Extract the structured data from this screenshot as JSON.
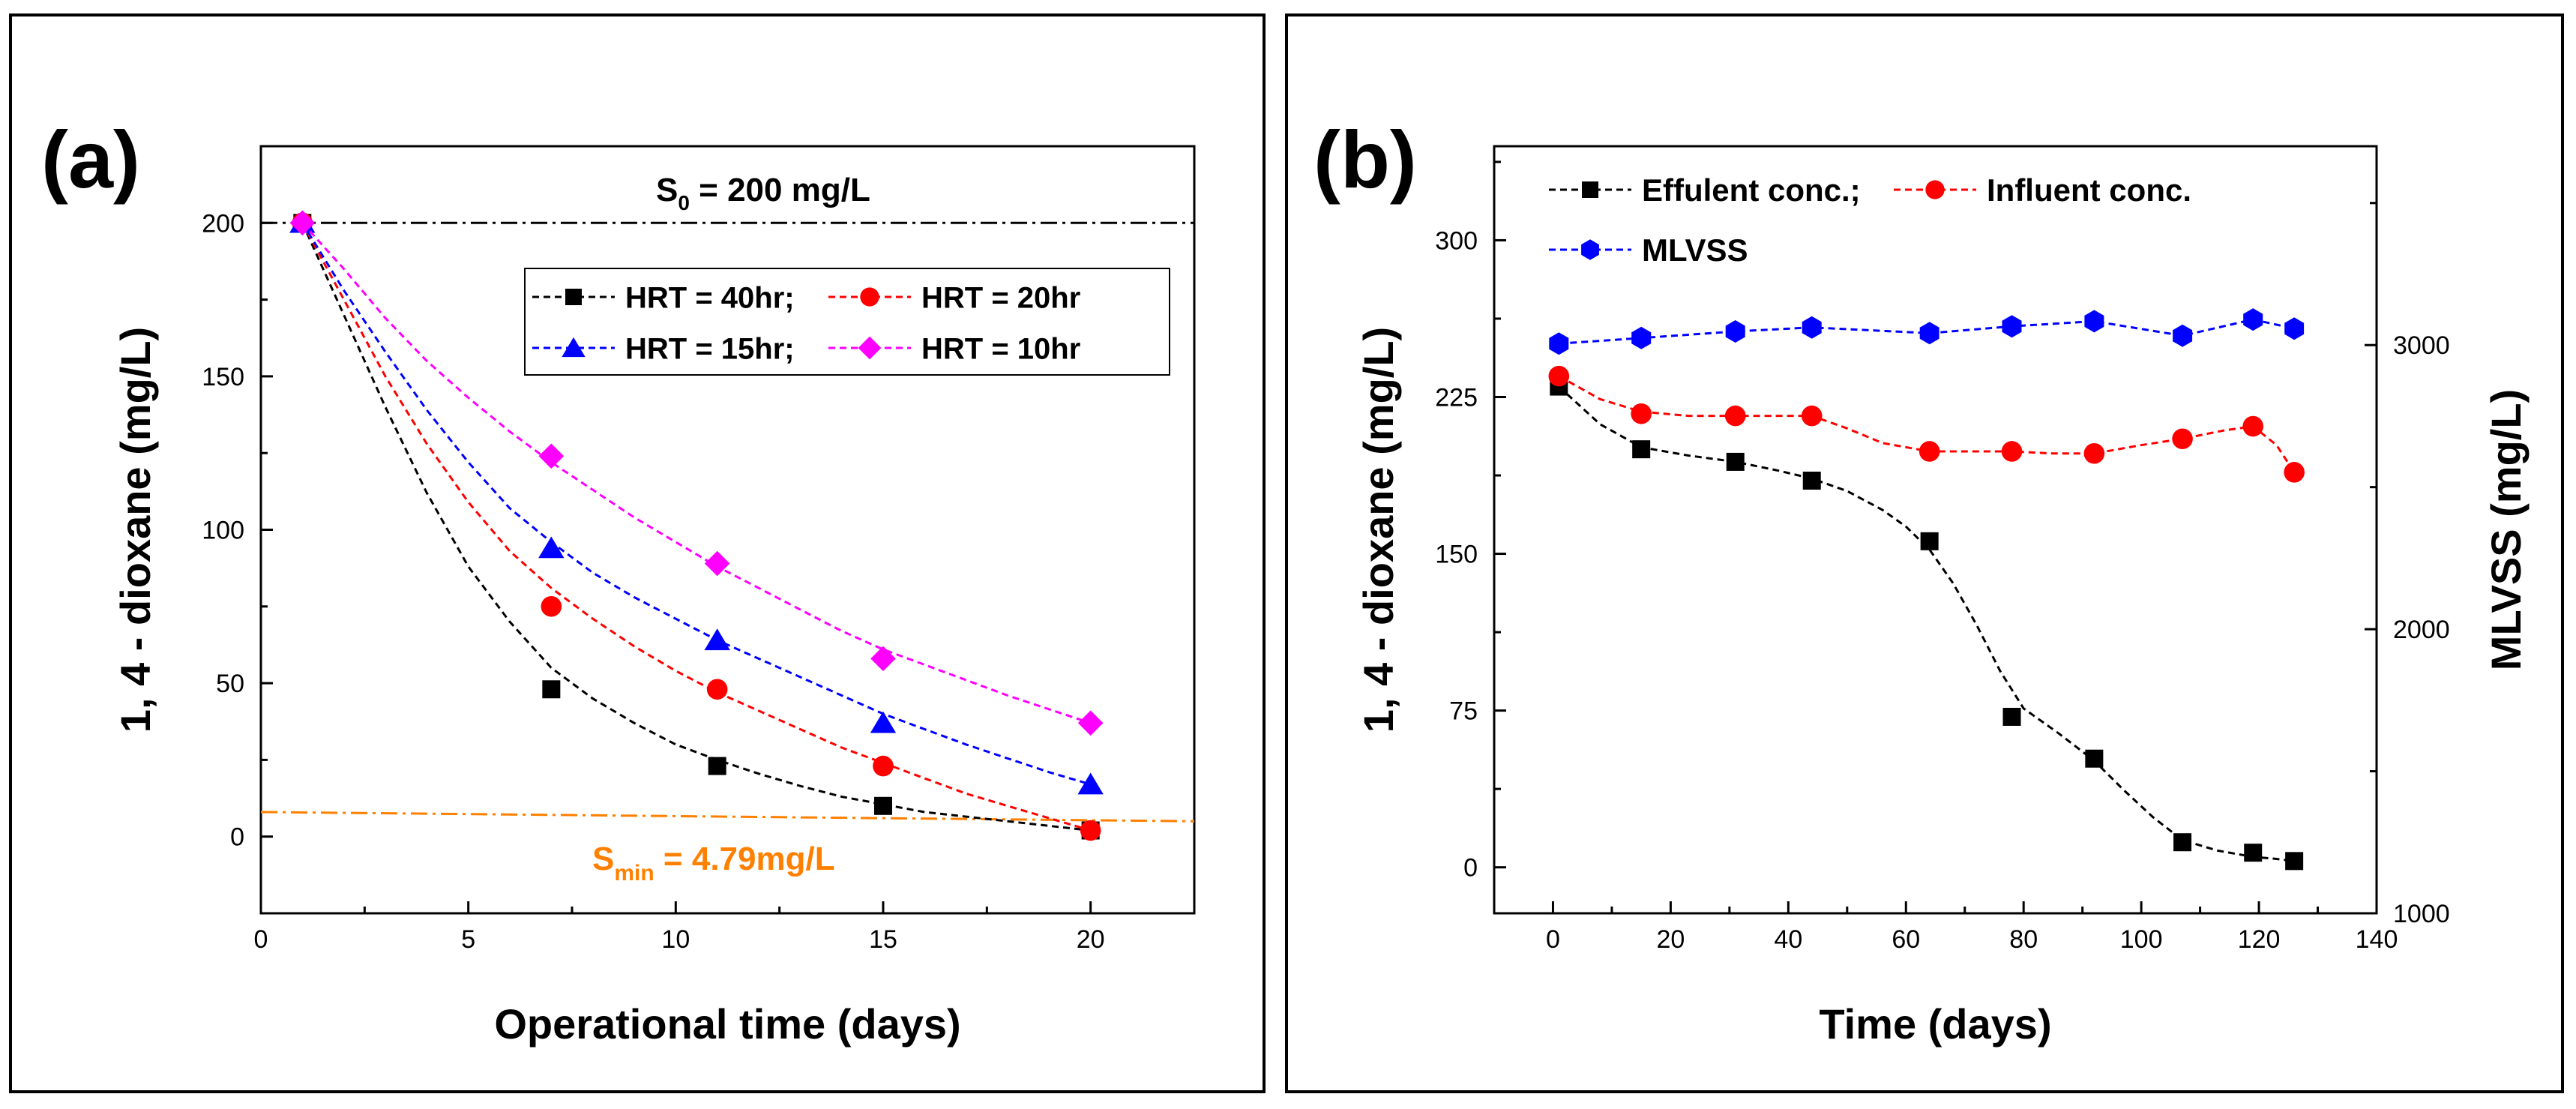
{
  "chart_data": [
    {
      "type": "line",
      "panel_label": "(a)",
      "xlabel": "Operational time (days)",
      "ylabel": "1, 4 - dioxane (mg/L)",
      "xlim": [
        0,
        22.5
      ],
      "ylim": [
        -25,
        225
      ],
      "xticks": [
        0,
        5,
        10,
        15,
        20
      ],
      "yticks": [
        0,
        50,
        100,
        150,
        200
      ],
      "reference_lines": [
        {
          "name": "S0",
          "main": "S",
          "sub": "0",
          "suffix": " = 200 mg/L",
          "y": 200,
          "color": "#000000"
        },
        {
          "name": "Smin",
          "main": "S",
          "sub": "min",
          "suffix": " = 4.79mg/L",
          "y_start": 8,
          "y_end": 5,
          "color": "#ff8000"
        }
      ],
      "series": [
        {
          "name": "HRT = 40hr;",
          "color": "#000000",
          "marker": "square",
          "x": [
            1,
            7,
            11,
            15,
            20
          ],
          "y": [
            200,
            48,
            23,
            10,
            2
          ],
          "curve": [
            [
              1,
              200
            ],
            [
              2,
              170
            ],
            [
              3,
              140
            ],
            [
              4,
              112
            ],
            [
              5,
              88
            ],
            [
              6,
              70
            ],
            [
              7,
              55
            ],
            [
              8,
              45
            ],
            [
              9,
              37
            ],
            [
              10,
              30
            ],
            [
              11,
              25
            ],
            [
              12,
              20.5
            ],
            [
              13,
              16.5
            ],
            [
              14,
              13
            ],
            [
              15,
              10.5
            ],
            [
              16,
              8
            ],
            [
              17,
              6.5
            ],
            [
              18,
              5
            ],
            [
              19,
              3.5
            ],
            [
              20,
              2
            ]
          ]
        },
        {
          "name": "HRT = 20hr",
          "color": "#ff0000",
          "marker": "circle",
          "x": [
            1,
            7,
            11,
            15,
            20
          ],
          "y": [
            200,
            75,
            48,
            23,
            2
          ],
          "curve": [
            [
              1,
              200
            ],
            [
              2,
              175
            ],
            [
              3,
              150
            ],
            [
              4,
              128
            ],
            [
              5,
              109
            ],
            [
              6,
              93
            ],
            [
              7,
              81
            ],
            [
              8,
              71
            ],
            [
              9,
              62
            ],
            [
              10,
              54
            ],
            [
              11,
              47
            ],
            [
              12,
              41
            ],
            [
              13,
              35
            ],
            [
              14,
              29
            ],
            [
              15,
              24
            ],
            [
              16,
              19
            ],
            [
              17,
              14
            ],
            [
              18,
              10
            ],
            [
              19,
              6
            ],
            [
              20,
              2
            ]
          ]
        },
        {
          "name": "HRT = 15hr;",
          "color": "#0000ff",
          "marker": "triangle",
          "x": [
            1,
            7,
            11,
            15,
            20
          ],
          "y": [
            200,
            94,
            64,
            37,
            17
          ],
          "curve": [
            [
              1,
              200
            ],
            [
              2,
              178
            ],
            [
              3,
              158
            ],
            [
              4,
              139
            ],
            [
              5,
              122
            ],
            [
              6,
              107
            ],
            [
              7,
              96
            ],
            [
              8,
              86
            ],
            [
              9,
              78
            ],
            [
              10,
              71
            ],
            [
              11,
              64
            ],
            [
              12,
              58
            ],
            [
              13,
              52
            ],
            [
              14,
              46
            ],
            [
              15,
              40
            ],
            [
              16,
              35
            ],
            [
              17,
              30
            ],
            [
              18,
              25.5
            ],
            [
              19,
              21
            ],
            [
              20,
              17
            ]
          ]
        },
        {
          "name": "HRT = 10hr",
          "color": "#ff00ff",
          "marker": "diamond",
          "x": [
            1,
            7,
            11,
            15,
            20
          ],
          "y": [
            200,
            124,
            89,
            58,
            37
          ],
          "curve": [
            [
              1,
              200
            ],
            [
              2,
              185
            ],
            [
              3,
              169
            ],
            [
              4,
              155
            ],
            [
              5,
              143
            ],
            [
              6,
              132
            ],
            [
              7,
              122
            ],
            [
              8,
              113
            ],
            [
              9,
              104
            ],
            [
              10,
              96
            ],
            [
              11,
              88
            ],
            [
              12,
              81
            ],
            [
              13,
              74
            ],
            [
              14,
              67
            ],
            [
              15,
              61
            ],
            [
              16,
              56
            ],
            [
              17,
              51
            ],
            [
              18,
              46
            ],
            [
              19,
              41.5
            ],
            [
              20,
              37
            ]
          ]
        }
      ]
    },
    {
      "type": "line",
      "panel_label": "(b)",
      "xlabel": "Time (days)",
      "ylabel": "1, 4 - dioxane (mg/L)",
      "ylabel_right": "MLVSS (mg/L)",
      "xlim": [
        -10,
        140
      ],
      "ylim": [
        -22,
        345
      ],
      "ylim_right": [
        1000,
        3700
      ],
      "xticks": [
        0,
        20,
        40,
        60,
        80,
        100,
        120,
        140
      ],
      "yticks": [
        0,
        75,
        150,
        225,
        300
      ],
      "yticks_right": [
        1000,
        2000,
        3000
      ],
      "series": [
        {
          "name": "Effulent conc.;",
          "color": "#000000",
          "marker": "square",
          "axis": "left",
          "x": [
            1,
            15,
            31,
            44,
            64,
            78,
            92,
            107,
            119,
            126
          ],
          "y": [
            230,
            200,
            194,
            185,
            156,
            72,
            52,
            12,
            7,
            3
          ],
          "curve": [
            [
              1,
              230
            ],
            [
              8,
              212
            ],
            [
              15,
              201
            ],
            [
              23,
              197
            ],
            [
              31,
              194
            ],
            [
              38,
              190
            ],
            [
              44,
              186
            ],
            [
              50,
              180
            ],
            [
              56,
              171
            ],
            [
              60,
              163
            ],
            [
              64,
              152
            ],
            [
              68,
              136
            ],
            [
              72,
              116
            ],
            [
              76,
              94
            ],
            [
              80,
              76
            ],
            [
              86,
              64
            ],
            [
              92,
              51
            ],
            [
              97,
              37
            ],
            [
              102,
              24
            ],
            [
              107,
              13
            ],
            [
              113,
              8
            ],
            [
              119,
              5
            ],
            [
              123,
              4
            ],
            [
              126,
              3
            ]
          ]
        },
        {
          "name": "Influent conc.",
          "color": "#ff0000",
          "marker": "circle",
          "axis": "left",
          "x": [
            1,
            15,
            31,
            44,
            64,
            78,
            92,
            107,
            119,
            126
          ],
          "y": [
            235,
            217,
            216,
            216,
            199,
            199,
            198,
            205,
            211,
            189
          ],
          "curve": [
            [
              1,
              235
            ],
            [
              8,
              224
            ],
            [
              15,
              218
            ],
            [
              23,
              216
            ],
            [
              31,
              216
            ],
            [
              38,
              216
            ],
            [
              44,
              216
            ],
            [
              50,
              210
            ],
            [
              56,
              203
            ],
            [
              64,
              199
            ],
            [
              71,
              199
            ],
            [
              78,
              199
            ],
            [
              85,
              198
            ],
            [
              92,
              198
            ],
            [
              100,
              202
            ],
            [
              107,
              205
            ],
            [
              114,
              209
            ],
            [
              119,
              211
            ],
            [
              123,
              202
            ],
            [
              126,
              189
            ]
          ]
        },
        {
          "name": "MLVSS",
          "color": "#0000ff",
          "marker": "hexagon",
          "axis": "right",
          "x": [
            1,
            15,
            31,
            44,
            64,
            78,
            92,
            107,
            119,
            126
          ],
          "y": [
            3005,
            3025,
            3048,
            3062,
            3042,
            3066,
            3084,
            3033,
            3090,
            3058
          ],
          "curve": [
            [
              1,
              3005
            ],
            [
              15,
              3025
            ],
            [
              31,
              3048
            ],
            [
              44,
              3062
            ],
            [
              64,
              3042
            ],
            [
              78,
              3066
            ],
            [
              92,
              3084
            ],
            [
              107,
              3033
            ],
            [
              119,
              3090
            ],
            [
              126,
              3058
            ]
          ]
        }
      ]
    }
  ]
}
